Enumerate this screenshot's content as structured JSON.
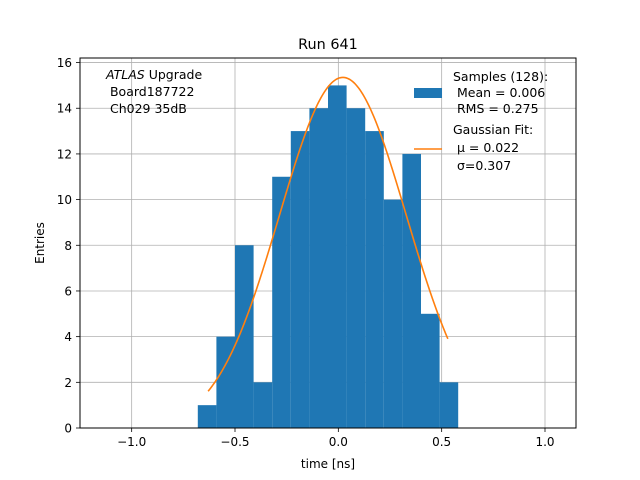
{
  "chart_data": {
    "type": "bar",
    "title": "Run 641",
    "xlabel": "time [ns]",
    "ylabel": "Entries",
    "xlim": [
      -1.25,
      1.15
    ],
    "ylim": [
      0,
      16.2
    ],
    "xticks": [
      -1.0,
      -0.5,
      0.0,
      0.5,
      1.0
    ],
    "xtick_labels": [
      "−1.0",
      "−0.5",
      "0.0",
      "0.5",
      "1.0"
    ],
    "yticks": [
      0,
      2,
      4,
      6,
      8,
      10,
      12,
      14,
      16
    ],
    "ytick_labels": [
      "0",
      "2",
      "4",
      "6",
      "8",
      "10",
      "12",
      "14",
      "16"
    ],
    "grid": true,
    "histogram": {
      "name": "Samples (128):",
      "color": "#1f77b4",
      "bin_edges": [
        -0.68,
        -0.59,
        -0.5,
        -0.41,
        -0.32,
        -0.23,
        -0.14,
        -0.05,
        0.04,
        0.13,
        0.22,
        0.31,
        0.4,
        0.49,
        0.58
      ],
      "counts": [
        1,
        4,
        8,
        2,
        11,
        13,
        14,
        15,
        14,
        13,
        10,
        12,
        5,
        2
      ]
    },
    "fit": {
      "name": "Gaussian Fit:",
      "color": "#ff7f0e",
      "mu": 0.022,
      "sigma": 0.307,
      "amplitude": 15.35,
      "x_range": [
        -0.63,
        0.53
      ]
    },
    "legend": {
      "placement": "top-right",
      "entries": [
        {
          "lines": [
            "Samples (128):",
            " Mean = 0.006",
            " RMS = 0.275"
          ]
        },
        {
          "lines": [
            "Gaussian Fit:",
            " μ = 0.022",
            " σ=0.307"
          ]
        }
      ]
    },
    "annotation": {
      "lines": [
        "ATLAS Upgrade",
        " Board187722",
        " Ch029 35dB"
      ],
      "italic_word": "ATLAS",
      "placement": "top-left"
    }
  }
}
